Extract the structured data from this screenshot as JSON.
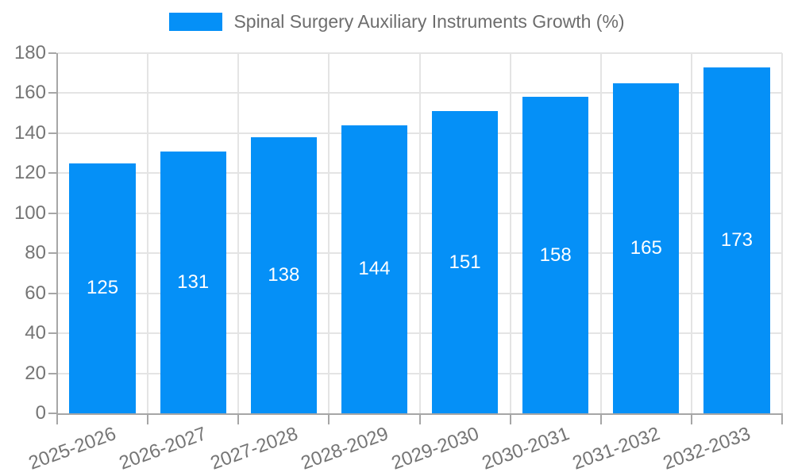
{
  "legend": {
    "label": "Spinal Surgery Auxiliary Instruments Growth (%)"
  },
  "chart_data": {
    "type": "bar",
    "title": "Spinal Surgery Auxiliary Instruments Growth (%)",
    "categories": [
      "2025-2026",
      "2026-2027",
      "2027-2028",
      "2028-2029",
      "2029-2030",
      "2030-2031",
      "2031-2032",
      "2032-2033"
    ],
    "values": [
      125,
      131,
      138,
      144,
      151,
      158,
      165,
      173
    ],
    "value_labels": [
      "125",
      "131",
      "138",
      "144",
      "151",
      "158",
      "165",
      "173"
    ],
    "xlabel": "",
    "ylabel": "",
    "ylim": [
      0,
      180
    ],
    "yticks": [
      0,
      20,
      40,
      60,
      80,
      100,
      120,
      140,
      160,
      180
    ],
    "grid": true,
    "legend_position": "top-center",
    "bar_label_position": "center-inside"
  },
  "colors": {
    "bar": "#0590f7",
    "grid": "#e4e4e4",
    "axis": "#a6a6a6",
    "tick_text": "#757575",
    "legend_text": "#6d6d6d",
    "value_text": "#ffffff",
    "background": "#ffffff"
  }
}
